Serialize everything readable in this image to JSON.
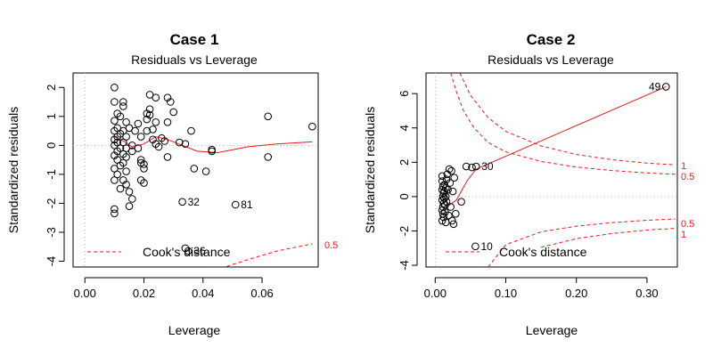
{
  "chart_data": [
    {
      "type": "scatter",
      "title": "Case 1",
      "subtitle": "Residuals vs Leverage",
      "xlabel": "Leverage",
      "ylabel": "Standardized residuals",
      "xlim": [
        -0.004,
        0.079
      ],
      "ylim": [
        -4.2,
        2.5
      ],
      "xticks": [
        "0.00",
        "0.02",
        "0.04",
        "0.06"
      ],
      "xtick_values": [
        0,
        0.02,
        0.04,
        0.06
      ],
      "yticks": [
        "-4",
        "-3",
        "-2",
        "-1",
        "0",
        "1",
        "2"
      ],
      "ytick_values": [
        -4,
        -3,
        -2,
        -1,
        0,
        1,
        2
      ],
      "points": [
        [
          0.01,
          2.0
        ],
        [
          0.01,
          1.5
        ],
        [
          0.011,
          1.1
        ],
        [
          0.012,
          1.0
        ],
        [
          0.01,
          0.85
        ],
        [
          0.011,
          0.6
        ],
        [
          0.01,
          0.5
        ],
        [
          0.012,
          0.4
        ],
        [
          0.011,
          0.3
        ],
        [
          0.01,
          0.2
        ],
        [
          0.011,
          0.1
        ],
        [
          0.01,
          0.0
        ],
        [
          0.012,
          -0.1
        ],
        [
          0.011,
          -0.2
        ],
        [
          0.01,
          -0.35
        ],
        [
          0.011,
          -0.5
        ],
        [
          0.012,
          -0.7
        ],
        [
          0.01,
          -0.8
        ],
        [
          0.011,
          -1.0
        ],
        [
          0.01,
          -1.2
        ],
        [
          0.012,
          -1.5
        ],
        [
          0.01,
          -2.2
        ],
        [
          0.01,
          -2.35
        ],
        [
          0.013,
          1.5
        ],
        [
          0.013,
          1.35
        ],
        [
          0.014,
          0.8
        ],
        [
          0.013,
          0.5
        ],
        [
          0.014,
          0.3
        ],
        [
          0.013,
          0.1
        ],
        [
          0.014,
          -0.1
        ],
        [
          0.013,
          -0.3
        ],
        [
          0.014,
          -0.4
        ],
        [
          0.013,
          -0.6
        ],
        [
          0.014,
          -0.9
        ],
        [
          0.013,
          -1.2
        ],
        [
          0.014,
          -1.35
        ],
        [
          0.015,
          -1.6
        ],
        [
          0.016,
          -1.85
        ],
        [
          0.015,
          -2.1
        ],
        [
          0.015,
          0.6
        ],
        [
          0.016,
          0.0
        ],
        [
          0.016,
          -0.2
        ],
        [
          0.017,
          0.5
        ],
        [
          0.018,
          0.75
        ],
        [
          0.018,
          -0.1
        ],
        [
          0.019,
          0.3
        ],
        [
          0.019,
          -0.5
        ],
        [
          0.019,
          -0.6
        ],
        [
          0.019,
          -1.2
        ],
        [
          0.02,
          -0.65
        ],
        [
          0.02,
          -1.3
        ],
        [
          0.02,
          -0.8
        ],
        [
          0.021,
          0.9
        ],
        [
          0.021,
          1.1
        ],
        [
          0.022,
          1.05
        ],
        [
          0.022,
          1.25
        ],
        [
          0.021,
          0.5
        ],
        [
          0.022,
          1.75
        ],
        [
          0.024,
          1.65
        ],
        [
          0.024,
          0.8
        ],
        [
          0.023,
          0.55
        ],
        [
          0.023,
          0.2
        ],
        [
          0.024,
          0.05
        ],
        [
          0.025,
          -0.05
        ],
        [
          0.026,
          0.25
        ],
        [
          0.027,
          0.15
        ],
        [
          0.028,
          1.65
        ],
        [
          0.029,
          1.5
        ],
        [
          0.03,
          1.15
        ],
        [
          0.028,
          0.8
        ],
        [
          0.028,
          -0.4
        ],
        [
          0.032,
          0.1
        ],
        [
          0.033,
          -1.95
        ],
        [
          0.034,
          0.05
        ],
        [
          0.034,
          -3.55
        ],
        [
          0.035,
          -3.65
        ],
        [
          0.036,
          0.5
        ],
        [
          0.037,
          -0.8
        ],
        [
          0.041,
          -0.9
        ],
        [
          0.043,
          -0.2
        ],
        [
          0.043,
          -0.15
        ],
        [
          0.051,
          -2.05
        ],
        [
          0.062,
          1.0
        ],
        [
          0.062,
          -0.4
        ],
        [
          0.077,
          0.65
        ]
      ],
      "labeled_points": [
        {
          "x": 0.033,
          "y": -1.95,
          "label": "32"
        },
        {
          "x": 0.035,
          "y": -3.65,
          "label": "36"
        },
        {
          "x": 0.051,
          "y": -2.05,
          "label": "81"
        }
      ],
      "smooth": [
        [
          0.01,
          0.3
        ],
        [
          0.013,
          0.15
        ],
        [
          0.016,
          -0.05
        ],
        [
          0.02,
          0.05
        ],
        [
          0.024,
          0.3
        ],
        [
          0.028,
          0.2
        ],
        [
          0.033,
          0.0
        ],
        [
          0.038,
          -0.2
        ],
        [
          0.045,
          -0.25
        ],
        [
          0.055,
          -0.05
        ],
        [
          0.065,
          0.05
        ],
        [
          0.077,
          0.12
        ]
      ],
      "cook_label": "0.5",
      "cook_curves": [
        {
          "label": "0.5",
          "points": [
            [
              0.046,
              -4.25
            ],
            [
              0.055,
              -3.95
            ],
            [
              0.065,
              -3.65
            ],
            [
              0.077,
              -3.4
            ]
          ]
        }
      ],
      "legend": {
        "label": "Cook's distance",
        "placement": "bottom-left"
      }
    },
    {
      "type": "scatter",
      "title": "Case 2",
      "subtitle": "Residuals vs Leverage",
      "xlabel": "Leverage",
      "ylabel": "Standardized residuals",
      "xlim": [
        -0.013,
        0.343
      ],
      "ylim": [
        -4.1,
        7.2
      ],
      "xticks": [
        "0.00",
        "0.10",
        "0.20",
        "0.30"
      ],
      "xtick_values": [
        0,
        0.1,
        0.2,
        0.3
      ],
      "yticks": [
        "-4",
        "-2",
        "0",
        "2",
        "4",
        "6"
      ],
      "ytick_values": [
        -4,
        -2,
        0,
        2,
        4,
        6
      ],
      "points": [
        [
          0.01,
          1.2
        ],
        [
          0.01,
          0.9
        ],
        [
          0.011,
          0.6
        ],
        [
          0.01,
          0.4
        ],
        [
          0.012,
          0.2
        ],
        [
          0.011,
          0.0
        ],
        [
          0.01,
          -0.2
        ],
        [
          0.012,
          -0.4
        ],
        [
          0.011,
          -0.6
        ],
        [
          0.01,
          -0.8
        ],
        [
          0.011,
          -1.0
        ],
        [
          0.012,
          -1.2
        ],
        [
          0.01,
          -1.4
        ],
        [
          0.013,
          0.7
        ],
        [
          0.013,
          0.3
        ],
        [
          0.013,
          -0.1
        ],
        [
          0.014,
          -0.5
        ],
        [
          0.014,
          -0.9
        ],
        [
          0.015,
          0.5
        ],
        [
          0.015,
          0.0
        ],
        [
          0.015,
          -1.5
        ],
        [
          0.016,
          1.0
        ],
        [
          0.016,
          -0.3
        ],
        [
          0.017,
          1.3
        ],
        [
          0.018,
          0.4
        ],
        [
          0.019,
          -1.1
        ],
        [
          0.02,
          1.6
        ],
        [
          0.021,
          0.8
        ],
        [
          0.022,
          -0.6
        ],
        [
          0.023,
          1.5
        ],
        [
          0.024,
          -1.4
        ],
        [
          0.025,
          0.3
        ],
        [
          0.026,
          -1.6
        ],
        [
          0.027,
          1.1
        ],
        [
          0.029,
          -1.0
        ],
        [
          0.037,
          -0.3
        ],
        [
          0.044,
          1.75
        ],
        [
          0.052,
          1.7
        ],
        [
          0.058,
          1.75
        ],
        [
          0.057,
          -2.9
        ],
        [
          0.327,
          6.4
        ]
      ],
      "labeled_points": [
        {
          "x": 0.058,
          "y": 1.75,
          "label": "30"
        },
        {
          "x": 0.057,
          "y": -2.9,
          "label": "10"
        },
        {
          "x": 0.327,
          "y": 6.4,
          "label": "49"
        }
      ],
      "smooth": [
        [
          0.01,
          0.1
        ],
        [
          0.02,
          -0.5
        ],
        [
          0.03,
          -0.2
        ],
        [
          0.045,
          0.9
        ],
        [
          0.058,
          1.6
        ],
        [
          0.327,
          6.4
        ]
      ],
      "cook_curves": [
        {
          "label": "1",
          "points": [
            [
              0.035,
              7.2
            ],
            [
              0.05,
              5.9
            ],
            [
              0.075,
              4.6
            ],
            [
              0.1,
              3.8
            ],
            [
              0.15,
              2.95
            ],
            [
              0.2,
              2.45
            ],
            [
              0.25,
              2.15
            ],
            [
              0.3,
              1.95
            ],
            [
              0.34,
              1.85
            ]
          ]
        },
        {
          "label": "0.5",
          "points": [
            [
              0.022,
              7.2
            ],
            [
              0.03,
              6.1
            ],
            [
              0.04,
              5.0
            ],
            [
              0.055,
              4.0
            ],
            [
              0.075,
              3.15
            ],
            [
              0.1,
              2.6
            ],
            [
              0.15,
              2.05
            ],
            [
              0.2,
              1.72
            ],
            [
              0.25,
              1.52
            ],
            [
              0.3,
              1.38
            ],
            [
              0.34,
              1.3
            ]
          ]
        },
        {
          "label": "0.5",
          "points": [
            [
              0.075,
              -4.1
            ],
            [
              0.1,
              -2.8
            ],
            [
              0.15,
              -2.05
            ],
            [
              0.2,
              -1.72
            ],
            [
              0.25,
              -1.52
            ],
            [
              0.3,
              -1.38
            ],
            [
              0.34,
              -1.3
            ]
          ]
        },
        {
          "label": "1",
          "points": [
            [
              0.15,
              -2.95
            ],
            [
              0.2,
              -2.45
            ],
            [
              0.25,
              -2.15
            ],
            [
              0.3,
              -1.95
            ],
            [
              0.34,
              -1.85
            ]
          ]
        }
      ],
      "cook_labels": [
        "1",
        "0.5",
        "0.5",
        "1"
      ],
      "legend": {
        "label": "Cook's distance",
        "placement": "bottom-left"
      }
    }
  ]
}
